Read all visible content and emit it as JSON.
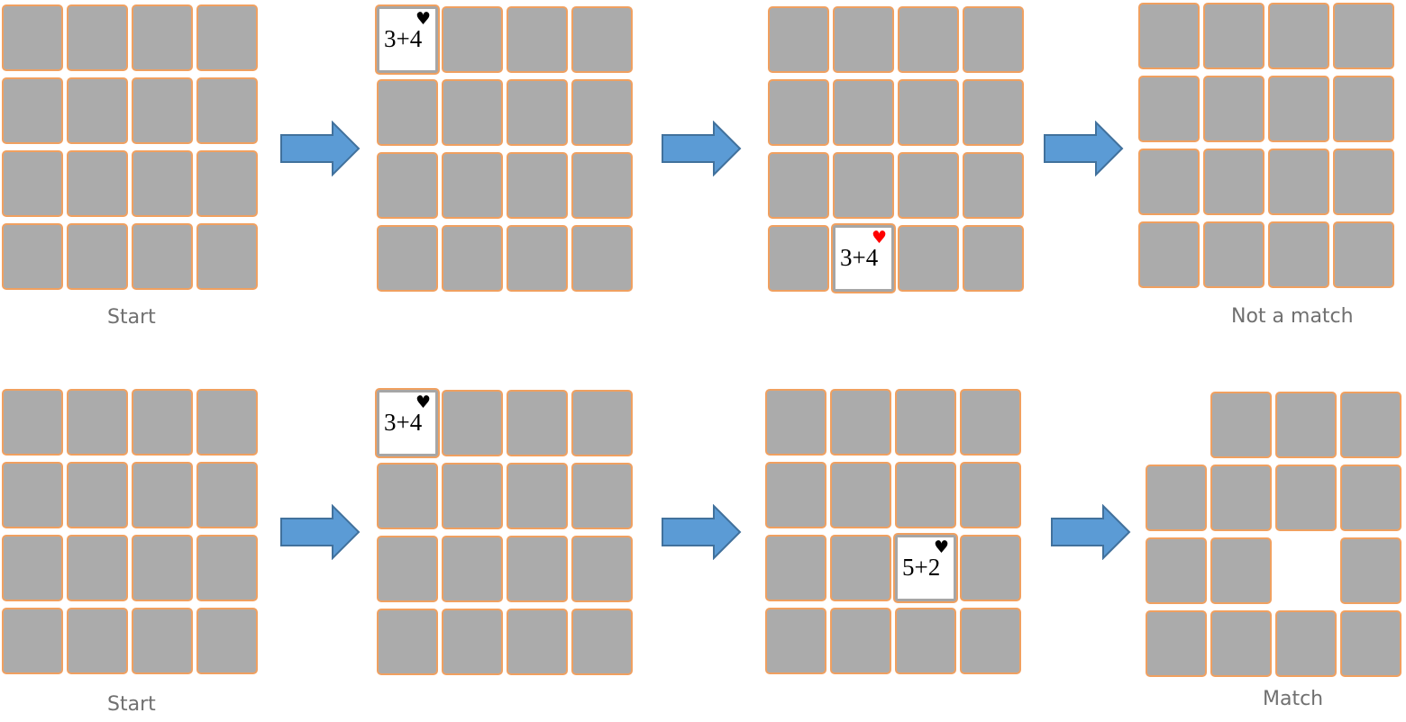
{
  "rows": [
    {
      "start_caption": "Start",
      "end_caption": "Not a match",
      "boards": [
        {
          "cards": [
            "d",
            "d",
            "d",
            "d",
            "d",
            "d",
            "d",
            "d",
            "d",
            "d",
            "d",
            "d",
            "d",
            "d",
            "d",
            "d"
          ]
        },
        {
          "cards": [
            {
              "expr": "3+4",
              "suit": "♥",
              "suit_color": "#000000"
            },
            "d",
            "d",
            "d",
            "d",
            "d",
            "d",
            "d",
            "d",
            "d",
            "d",
            "d",
            "d",
            "d",
            "d",
            "d"
          ]
        },
        {
          "cards": [
            "d",
            "d",
            "d",
            "d",
            "d",
            "d",
            "d",
            "d",
            "d",
            "d",
            "d",
            "d",
            "d",
            {
              "expr": "3+4",
              "suit": "♥",
              "suit_color": "#ff0000"
            },
            "d",
            "d"
          ]
        },
        {
          "cards": [
            "d",
            "d",
            "d",
            "d",
            "d",
            "d",
            "d",
            "d",
            "d",
            "d",
            "d",
            "d",
            "d",
            "d",
            "d",
            "d"
          ]
        }
      ]
    },
    {
      "start_caption": "Start",
      "end_caption": "Match",
      "boards": [
        {
          "cards": [
            "d",
            "d",
            "d",
            "d",
            "d",
            "d",
            "d",
            "d",
            "d",
            "d",
            "d",
            "d",
            "d",
            "d",
            "d",
            "d"
          ]
        },
        {
          "cards": [
            {
              "expr": "3+4",
              "suit": "♥",
              "suit_color": "#000000"
            },
            "d",
            "d",
            "d",
            "d",
            "d",
            "d",
            "d",
            "d",
            "d",
            "d",
            "d",
            "d",
            "d",
            "d",
            "d"
          ]
        },
        {
          "cards": [
            "d",
            "d",
            "d",
            "d",
            "d",
            "d",
            "d",
            "d",
            "d",
            "d",
            {
              "expr": "5+2",
              "suit": "♥",
              "suit_color": "#000000"
            },
            "d",
            "d",
            "d",
            "d",
            "d"
          ]
        },
        {
          "cards": [
            "e",
            "d",
            "d",
            "d",
            "d",
            "d",
            "d",
            "d",
            "d",
            "d",
            "e",
            "d",
            "d",
            "d",
            "d",
            "d"
          ]
        }
      ]
    }
  ],
  "colors": {
    "card_back": "#ababab",
    "card_border": "#f0a060",
    "arrow_fill": "#5b9bd5",
    "arrow_stroke": "#41719c",
    "caption": "#707070"
  },
  "icons": {
    "arrow": "right-arrow-icon",
    "suit": "heart-icon"
  }
}
